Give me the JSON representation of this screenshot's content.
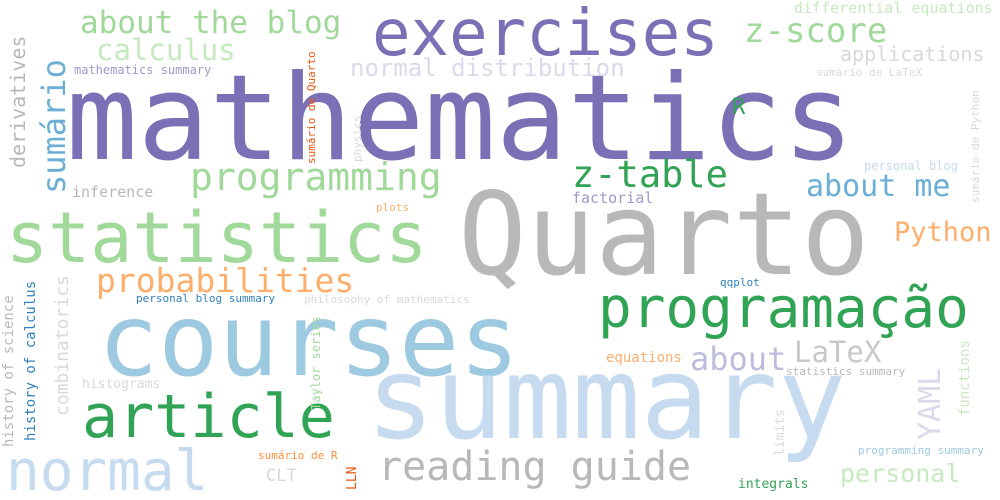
{
  "palette": {
    "purple": "#7b6fb6",
    "gray": "#b8b8b8",
    "light_blue": "#9ecae1",
    "pale_blue": "#c6dbef",
    "green": "#31a354",
    "light_green": "#a1d99b",
    "pale_green": "#c7e9c0",
    "orange": "#fd8d3c",
    "light_orange": "#fdae6b",
    "blue": "#3182bd",
    "mid_blue": "#6baed6",
    "lavender": "#bcbddc",
    "dark_orange": "#e6550d"
  },
  "words": {
    "mathematics": "mathematics",
    "Quarto": "Quarto",
    "courses": "courses",
    "summary": "summary",
    "statistics": "statistics",
    "exercises": "exercises",
    "programacao": "programação",
    "article": "article",
    "normal": "normal",
    "reading_guide": "reading guide",
    "about_the_blog": "about the blog",
    "z_score": "z-score",
    "z_table": "z-table",
    "programming": "programming",
    "probabilities": "probabilities",
    "about_me": "about me",
    "calculus": "calculus",
    "sumario": "sumário",
    "normal_distribution": "normal distribution",
    "Python": "Python",
    "LaTeX": "LaTeX",
    "about": "about",
    "YAML": "YAML",
    "personal": "personal",
    "applications": "applications",
    "differential_equations": "differential equations",
    "R": "R",
    "derivatives": "derivatives",
    "inference": "inference",
    "factorial": "factorial",
    "mathematics_summary": "mathematics summary",
    "sumario_de_LaTeX": "sumário de LaTeX",
    "sumario_de_Python": "sumário de Python",
    "personal_blog": "personal blog",
    "sumario_de_Quarto": "sumário de Quarto",
    "physics": "physics",
    "plots": "plots",
    "history_of_science": "history of science",
    "history_of_calculus": "history of calculus",
    "combinatorics": "combinatorics",
    "personal_blog_summary": "personal blog summary",
    "philosophy_of_mathematics": "philosophy of mathematics",
    "qqplot": "qqplot",
    "histograms": "histograms",
    "Taylor_series": "Taylor series",
    "equations": "equations",
    "statistics_summary": "statistics summary",
    "functions": "functions",
    "limits": "limits",
    "programming_summary": "programming summary",
    "sumario_de_R": "sumário de R",
    "CLT": "CLT",
    "LLN": "LLN",
    "integrals": "integrals"
  }
}
